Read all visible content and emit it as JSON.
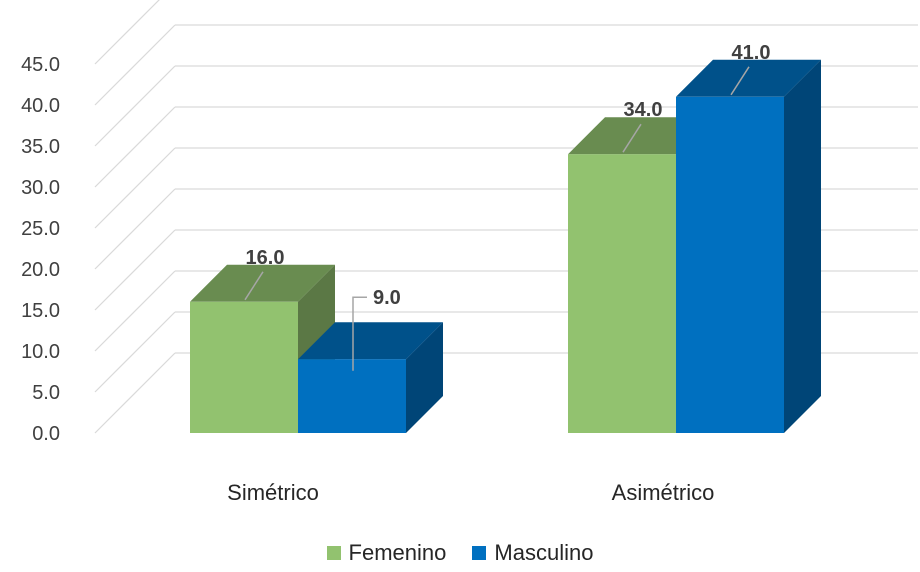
{
  "chart_data": {
    "type": "bar",
    "categories": [
      "Simétrico",
      "Asimétrico"
    ],
    "series": [
      {
        "name": "Femenino",
        "values": [
          16.0,
          34.0
        ],
        "color": "#92C26F"
      },
      {
        "name": "Masculino",
        "values": [
          9.0,
          41.0
        ],
        "color": "#0070C0"
      }
    ],
    "y_ticks": [
      "0.0",
      "5.0",
      "10.0",
      "15.0",
      "20.0",
      "25.0",
      "30.0",
      "35.0",
      "40.0",
      "45.0"
    ],
    "data_labels": [
      [
        "16.0",
        "34.0"
      ],
      [
        "9.0",
        "41.0"
      ]
    ],
    "ylim": [
      0,
      45
    ],
    "grid": true,
    "legend_position": "bottom",
    "style": "3d-clustered-column"
  }
}
